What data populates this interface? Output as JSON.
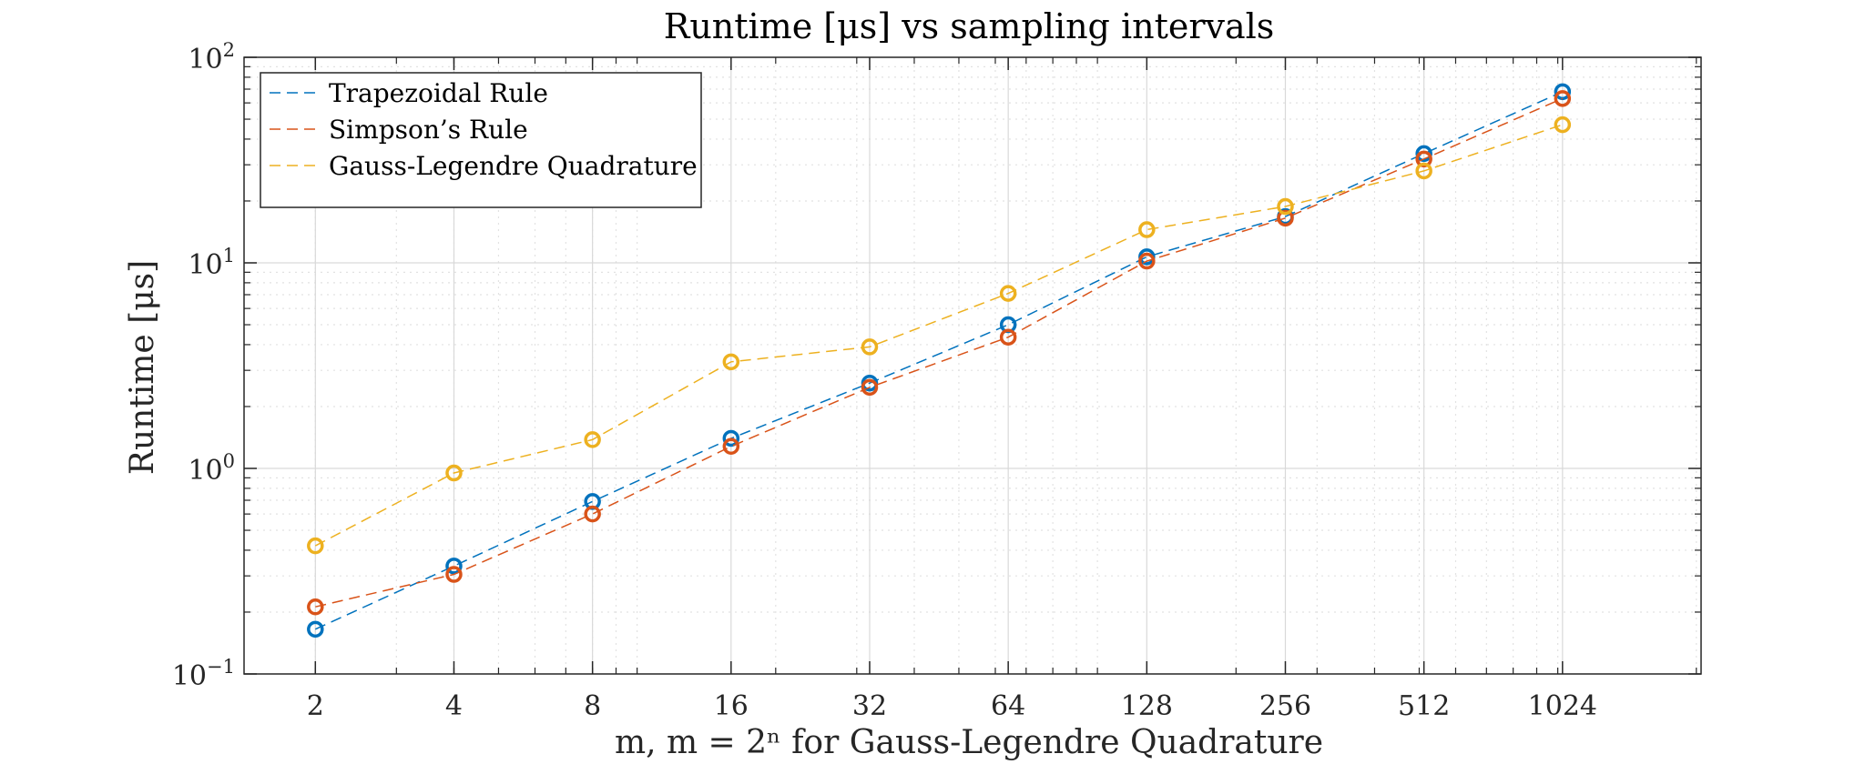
{
  "chart_data": {
    "type": "line",
    "title": "Runtime [μs] vs sampling intervals",
    "xlabel": "m, m = 2ⁿ for Gauss-Legendre Quadrature",
    "ylabel": "Runtime [μs]",
    "x_scale": "log2",
    "y_scale": "log10",
    "xlim": [
      1.4,
      2048
    ],
    "ylim": [
      0.1,
      100
    ],
    "x": [
      2,
      4,
      8,
      16,
      32,
      64,
      128,
      256,
      512,
      1024
    ],
    "x_tick_labels": [
      "2",
      "4",
      "8",
      "16",
      "32",
      "64",
      "128",
      "256",
      "512",
      "1024"
    ],
    "y_ticks": [
      {
        "value": 0.1,
        "base": "10",
        "exp": "−1"
      },
      {
        "value": 1,
        "base": "10",
        "exp": "0"
      },
      {
        "value": 10,
        "base": "10",
        "exp": "1"
      },
      {
        "value": 100,
        "base": "10",
        "exp": "2"
      }
    ],
    "grid": true,
    "legend_position": "top-left",
    "series": [
      {
        "name": "Trapezoidal Rule",
        "color": "#0072BD",
        "values": [
          0.165,
          0.335,
          0.69,
          1.4,
          2.6,
          5.0,
          10.7,
          16.8,
          34.0,
          68.0
        ]
      },
      {
        "name": "Simpson’s Rule",
        "color": "#D95319",
        "values": [
          0.212,
          0.305,
          0.6,
          1.28,
          2.48,
          4.35,
          10.2,
          16.5,
          32.0,
          63.0
        ]
      },
      {
        "name": "Gauss-Legendre Quadrature",
        "color": "#EDB120",
        "values": [
          0.42,
          0.95,
          1.38,
          3.3,
          3.9,
          7.1,
          14.5,
          18.8,
          28.0,
          47.0
        ]
      }
    ]
  }
}
